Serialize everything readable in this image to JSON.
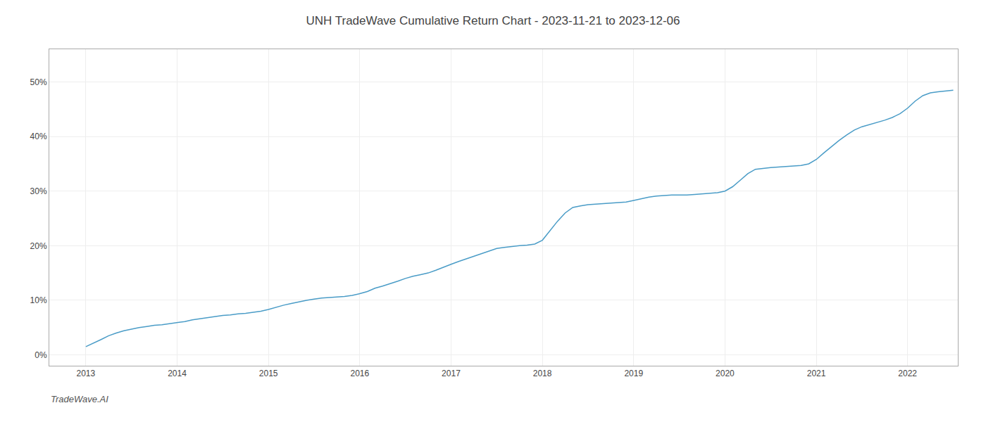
{
  "chart_data": {
    "type": "line",
    "title": "UNH TradeWave Cumulative Return Chart - 2023-11-21 to 2023-12-06",
    "annotations": [
      "TradeWave.AI"
    ],
    "color": "#4a9cc7",
    "grid": true,
    "x": [
      2013.0,
      2013.083,
      2013.167,
      2013.25,
      2013.333,
      2013.417,
      2013.5,
      2013.583,
      2013.667,
      2013.75,
      2013.833,
      2013.917,
      2014.0,
      2014.083,
      2014.167,
      2014.25,
      2014.333,
      2014.417,
      2014.5,
      2014.583,
      2014.667,
      2014.75,
      2014.833,
      2014.917,
      2015.0,
      2015.083,
      2015.167,
      2015.25,
      2015.333,
      2015.417,
      2015.5,
      2015.583,
      2015.667,
      2015.75,
      2015.833,
      2015.917,
      2016.0,
      2016.083,
      2016.167,
      2016.25,
      2016.333,
      2016.417,
      2016.5,
      2016.583,
      2016.667,
      2016.75,
      2016.833,
      2016.917,
      2017.0,
      2017.083,
      2017.167,
      2017.25,
      2017.333,
      2017.417,
      2017.5,
      2017.583,
      2017.667,
      2017.75,
      2017.833,
      2017.917,
      2018.0,
      2018.083,
      2018.167,
      2018.25,
      2018.333,
      2018.417,
      2018.5,
      2018.583,
      2018.667,
      2018.75,
      2018.833,
      2018.917,
      2019.0,
      2019.083,
      2019.167,
      2019.25,
      2019.333,
      2019.417,
      2019.5,
      2019.583,
      2019.667,
      2019.75,
      2019.833,
      2019.917,
      2020.0,
      2020.083,
      2020.167,
      2020.25,
      2020.333,
      2020.417,
      2020.5,
      2020.583,
      2020.667,
      2020.75,
      2020.833,
      2020.917,
      2021.0,
      2021.083,
      2021.167,
      2021.25,
      2021.333,
      2021.417,
      2021.5,
      2021.583,
      2021.667,
      2021.75,
      2021.833,
      2021.917,
      2022.0,
      2022.083,
      2022.167,
      2022.25,
      2022.333,
      2022.417,
      2022.5
    ],
    "values": [
      1.5,
      2.1,
      2.8,
      3.5,
      4.0,
      4.4,
      4.7,
      5.0,
      5.2,
      5.4,
      5.5,
      5.7,
      5.9,
      6.1,
      6.4,
      6.6,
      6.8,
      7.0,
      7.2,
      7.3,
      7.5,
      7.6,
      7.8,
      8.0,
      8.3,
      8.7,
      9.1,
      9.4,
      9.7,
      10.0,
      10.2,
      10.4,
      10.5,
      10.6,
      10.7,
      10.9,
      11.2,
      11.6,
      12.2,
      12.6,
      13.0,
      13.5,
      14.0,
      14.4,
      14.7,
      15.0,
      15.5,
      16.1,
      16.6,
      17.1,
      17.6,
      18.1,
      18.6,
      19.1,
      19.5,
      19.7,
      19.9,
      20.0,
      20.1,
      20.3,
      21.0,
      22.8,
      24.5,
      26.0,
      27.0,
      27.3,
      27.5,
      27.6,
      27.7,
      27.8,
      27.9,
      28.0,
      28.3,
      28.6,
      28.9,
      29.1,
      29.2,
      29.3,
      29.3,
      29.3,
      29.4,
      29.5,
      29.6,
      29.7,
      30.0,
      30.8,
      32.0,
      33.2,
      34.0,
      34.2,
      34.3,
      34.4,
      34.5,
      34.6,
      34.7,
      35.0,
      35.8,
      37.0,
      38.2,
      39.3,
      40.3,
      41.2,
      41.8,
      42.2,
      42.6,
      43.0,
      43.5,
      44.2,
      45.2,
      46.5,
      47.5,
      48.0,
      48.2,
      48.4,
      48.5
    ],
    "xlim": [
      2012.6,
      2022.55
    ],
    "ylim": [
      -2,
      56
    ],
    "xticks": [
      2013,
      2014,
      2015,
      2016,
      2017,
      2018,
      2019,
      2020,
      2021,
      2022
    ],
    "yticks": [
      {
        "value": 0,
        "label": "0%"
      },
      {
        "value": 10,
        "label": "10%"
      },
      {
        "value": 20,
        "label": "20%"
      },
      {
        "value": 30,
        "label": "30%"
      },
      {
        "value": 40,
        "label": "40%"
      },
      {
        "value": 50,
        "label": "50%"
      }
    ]
  }
}
